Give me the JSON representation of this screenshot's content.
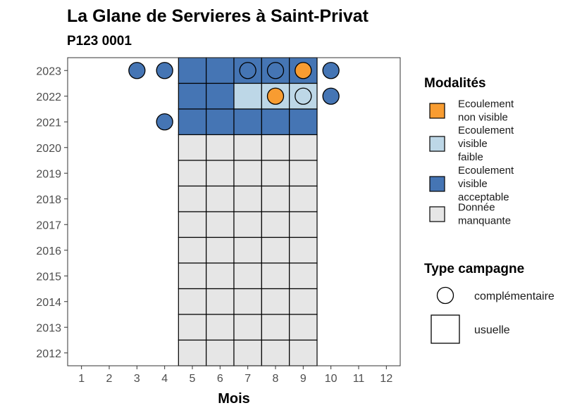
{
  "chart_data": {
    "type": "heatmap",
    "title": "La Glane de Servieres à Saint-Privat",
    "subtitle": "P123 0001",
    "xlabel": "Mois",
    "ylabel": "",
    "x_ticks": [
      "1",
      "2",
      "3",
      "4",
      "5",
      "6",
      "7",
      "8",
      "9",
      "10",
      "11",
      "12"
    ],
    "y_ticks": [
      "2012",
      "2013",
      "2014",
      "2015",
      "2016",
      "2017",
      "2018",
      "2019",
      "2020",
      "2021",
      "2022",
      "2023"
    ],
    "xlim": [
      0.5,
      12.5
    ],
    "ylim": [
      2011.5,
      2023.5
    ],
    "grid": false,
    "legend_position": "right",
    "colors": {
      "orange": "#f89c31",
      "lightblue": "#bdd7e7",
      "blue": "#4575b4",
      "grey": "#e6e6e6"
    },
    "legend_modalites": {
      "title": "Modalités",
      "items": [
        {
          "key": "orange",
          "lines": [
            "Ecoulement",
            "non visible"
          ]
        },
        {
          "key": "lightblue",
          "lines": [
            "Ecoulement",
            "visible",
            "faible"
          ]
        },
        {
          "key": "blue",
          "lines": [
            "Ecoulement",
            "visible",
            "acceptable"
          ]
        },
        {
          "key": "grey",
          "lines": [
            "Donnée",
            "manquante"
          ]
        }
      ]
    },
    "legend_campagne": {
      "title": "Type campagne",
      "items": [
        {
          "shape": "circle",
          "label": "complémentaire"
        },
        {
          "shape": "square",
          "label": "usuelle"
        }
      ]
    },
    "usuelle": [
      {
        "year": 2023,
        "month": 5,
        "value": "blue"
      },
      {
        "year": 2023,
        "month": 6,
        "value": "blue"
      },
      {
        "year": 2023,
        "month": 7,
        "value": "blue"
      },
      {
        "year": 2023,
        "month": 8,
        "value": "blue"
      },
      {
        "year": 2023,
        "month": 9,
        "value": "blue"
      },
      {
        "year": 2022,
        "month": 5,
        "value": "blue"
      },
      {
        "year": 2022,
        "month": 6,
        "value": "blue"
      },
      {
        "year": 2022,
        "month": 7,
        "value": "lightblue"
      },
      {
        "year": 2022,
        "month": 8,
        "value": "lightblue"
      },
      {
        "year": 2022,
        "month": 9,
        "value": "lightblue"
      },
      {
        "year": 2021,
        "month": 5,
        "value": "blue"
      },
      {
        "year": 2021,
        "month": 6,
        "value": "blue"
      },
      {
        "year": 2021,
        "month": 7,
        "value": "blue"
      },
      {
        "year": 2021,
        "month": 8,
        "value": "blue"
      },
      {
        "year": 2021,
        "month": 9,
        "value": "blue"
      },
      {
        "year": 2020,
        "month": 5,
        "value": "grey"
      },
      {
        "year": 2020,
        "month": 6,
        "value": "grey"
      },
      {
        "year": 2020,
        "month": 7,
        "value": "grey"
      },
      {
        "year": 2020,
        "month": 8,
        "value": "grey"
      },
      {
        "year": 2020,
        "month": 9,
        "value": "grey"
      },
      {
        "year": 2019,
        "month": 5,
        "value": "grey"
      },
      {
        "year": 2019,
        "month": 6,
        "value": "grey"
      },
      {
        "year": 2019,
        "month": 7,
        "value": "grey"
      },
      {
        "year": 2019,
        "month": 8,
        "value": "grey"
      },
      {
        "year": 2019,
        "month": 9,
        "value": "grey"
      },
      {
        "year": 2018,
        "month": 5,
        "value": "grey"
      },
      {
        "year": 2018,
        "month": 6,
        "value": "grey"
      },
      {
        "year": 2018,
        "month": 7,
        "value": "grey"
      },
      {
        "year": 2018,
        "month": 8,
        "value": "grey"
      },
      {
        "year": 2018,
        "month": 9,
        "value": "grey"
      },
      {
        "year": 2017,
        "month": 5,
        "value": "grey"
      },
      {
        "year": 2017,
        "month": 6,
        "value": "grey"
      },
      {
        "year": 2017,
        "month": 7,
        "value": "grey"
      },
      {
        "year": 2017,
        "month": 8,
        "value": "grey"
      },
      {
        "year": 2017,
        "month": 9,
        "value": "grey"
      },
      {
        "year": 2016,
        "month": 5,
        "value": "grey"
      },
      {
        "year": 2016,
        "month": 6,
        "value": "grey"
      },
      {
        "year": 2016,
        "month": 7,
        "value": "grey"
      },
      {
        "year": 2016,
        "month": 8,
        "value": "grey"
      },
      {
        "year": 2016,
        "month": 9,
        "value": "grey"
      },
      {
        "year": 2015,
        "month": 5,
        "value": "grey"
      },
      {
        "year": 2015,
        "month": 6,
        "value": "grey"
      },
      {
        "year": 2015,
        "month": 7,
        "value": "grey"
      },
      {
        "year": 2015,
        "month": 8,
        "value": "grey"
      },
      {
        "year": 2015,
        "month": 9,
        "value": "grey"
      },
      {
        "year": 2014,
        "month": 5,
        "value": "grey"
      },
      {
        "year": 2014,
        "month": 6,
        "value": "grey"
      },
      {
        "year": 2014,
        "month": 7,
        "value": "grey"
      },
      {
        "year": 2014,
        "month": 8,
        "value": "grey"
      },
      {
        "year": 2014,
        "month": 9,
        "value": "grey"
      },
      {
        "year": 2013,
        "month": 5,
        "value": "grey"
      },
      {
        "year": 2013,
        "month": 6,
        "value": "grey"
      },
      {
        "year": 2013,
        "month": 7,
        "value": "grey"
      },
      {
        "year": 2013,
        "month": 8,
        "value": "grey"
      },
      {
        "year": 2013,
        "month": 9,
        "value": "grey"
      },
      {
        "year": 2012,
        "month": 5,
        "value": "grey"
      },
      {
        "year": 2012,
        "month": 6,
        "value": "grey"
      },
      {
        "year": 2012,
        "month": 7,
        "value": "grey"
      },
      {
        "year": 2012,
        "month": 8,
        "value": "grey"
      },
      {
        "year": 2012,
        "month": 9,
        "value": "grey"
      }
    ],
    "complementaire": [
      {
        "year": 2023,
        "month": 3,
        "value": "blue"
      },
      {
        "year": 2023,
        "month": 4,
        "value": "blue"
      },
      {
        "year": 2023,
        "month": 7,
        "value": "blue"
      },
      {
        "year": 2023,
        "month": 8,
        "value": "blue"
      },
      {
        "year": 2023,
        "month": 9,
        "value": "orange"
      },
      {
        "year": 2023,
        "month": 10,
        "value": "blue"
      },
      {
        "year": 2022,
        "month": 8,
        "value": "orange"
      },
      {
        "year": 2022,
        "month": 9,
        "value": "lightblue"
      },
      {
        "year": 2022,
        "month": 10,
        "value": "blue"
      },
      {
        "year": 2021,
        "month": 4,
        "value": "blue"
      }
    ]
  }
}
